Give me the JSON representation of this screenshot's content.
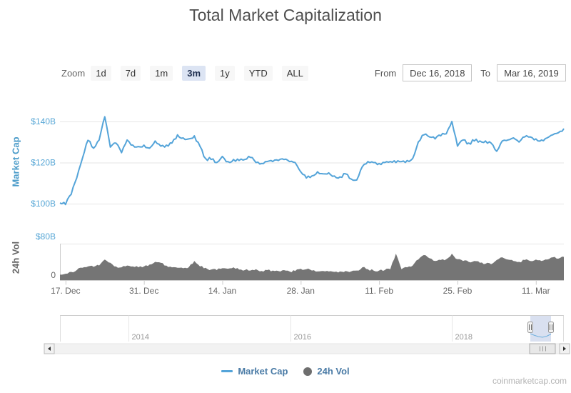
{
  "title": "Total Market Capitalization",
  "toolbar": {
    "zoom_label": "Zoom",
    "zoom_options": [
      "1d",
      "7d",
      "1m",
      "3m",
      "1y",
      "YTD",
      "ALL"
    ],
    "selected_zoom": "3m",
    "from_label": "From",
    "from_value": "Dec 16, 2018",
    "to_label": "To",
    "to_value": "Mar 16, 2019"
  },
  "chart_data": {
    "type": "line",
    "title": "Total Market Capitalization",
    "x": {
      "start": "2018-12-16",
      "end": "2019-03-16",
      "interval": "1 day",
      "tick_labels": [
        "17. Dec",
        "31. Dec",
        "14. Jan",
        "28. Jan",
        "11. Feb",
        "25. Feb",
        "11. Mar"
      ],
      "tick_day_indices": [
        1,
        15,
        29,
        43,
        57,
        71,
        85
      ]
    },
    "series": [
      {
        "name": "Market Cap",
        "type": "line",
        "color": "#54a4d9",
        "unit": "USD billions",
        "axis_title": "Market Cap",
        "ticks": [
          100,
          120,
          140
        ],
        "tick_labels": [
          "$100B",
          "$120B",
          "$140B"
        ],
        "ylim": [
          97,
          147
        ],
        "values": [
          100.3,
          99.6,
          104.5,
          112.5,
          122.0,
          130.8,
          127.0,
          131.0,
          142.3,
          127.5,
          129.5,
          124.8,
          131.0,
          128.5,
          127.8,
          128.5,
          127.0,
          130.5,
          128.0,
          128.5,
          129.5,
          133.5,
          132.0,
          131.5,
          133.0,
          128.0,
          122.0,
          121.5,
          120.0,
          123.0,
          120.5,
          121.5,
          121.0,
          121.5,
          122.5,
          120.0,
          119.5,
          120.5,
          120.5,
          121.0,
          121.5,
          120.5,
          120.0,
          115.5,
          112.5,
          113.5,
          115.5,
          114.5,
          115.0,
          113.5,
          113.0,
          114.5,
          112.0,
          111.5,
          118.0,
          120.5,
          120.0,
          119.5,
          120.0,
          120.5,
          120.0,
          120.5,
          121.0,
          122.0,
          130.0,
          133.5,
          132.5,
          131.5,
          133.0,
          134.0,
          140.0,
          128.0,
          131.0,
          129.5,
          130.5,
          130.5,
          130.5,
          129.5,
          125.5,
          130.5,
          131.0,
          132.0,
          130.0,
          132.5,
          132.5,
          131.5,
          131.0,
          132.0,
          133.5,
          134.5,
          136.5
        ]
      },
      {
        "name": "24h Vol",
        "type": "area",
        "color": "#757575",
        "unit": "USD billions",
        "axis_title": "24h Vol",
        "ticks": [
          0,
          80
        ],
        "tick_labels": [
          "0",
          "$80B"
        ],
        "ylim": [
          0,
          80
        ],
        "values": [
          12,
          14,
          18,
          22,
          27,
          30,
          29,
          32,
          45,
          38,
          30,
          28,
          32,
          30,
          28,
          30,
          34,
          40,
          38,
          32,
          28,
          27,
          26,
          28,
          42,
          30,
          27,
          23,
          22,
          26,
          25,
          28,
          23,
          22,
          21,
          24,
          20,
          22,
          21,
          20,
          22,
          19,
          20,
          25,
          24,
          21,
          19,
          20,
          19,
          18,
          19,
          20,
          19,
          21,
          28,
          24,
          21,
          21,
          22,
          24,
          58,
          24,
          28,
          32,
          45,
          55,
          48,
          42,
          44,
          46,
          58,
          46,
          42,
          40,
          42,
          38,
          36,
          35,
          44,
          50,
          45,
          42,
          40,
          44,
          42,
          45,
          42,
          45,
          50,
          47,
          51
        ]
      }
    ],
    "legend_position": "bottom-center",
    "grid": true
  },
  "navigator": {
    "year_labels": [
      "2014",
      "2016",
      "2018"
    ]
  },
  "legend": {
    "items": [
      {
        "label": "Market Cap",
        "marker": "line",
        "color": "#54a4d9"
      },
      {
        "label": "24h Vol",
        "marker": "circle",
        "color": "#6e6e6e"
      }
    ]
  },
  "watermark": "coinmarketcap.com",
  "colors": {
    "line_blue": "#54a4d9",
    "axis_label_blue": "#58a7d6",
    "volume_gray": "#757575",
    "selected_button_bg": "#dce4f3",
    "grid": "#e6e6e6"
  }
}
